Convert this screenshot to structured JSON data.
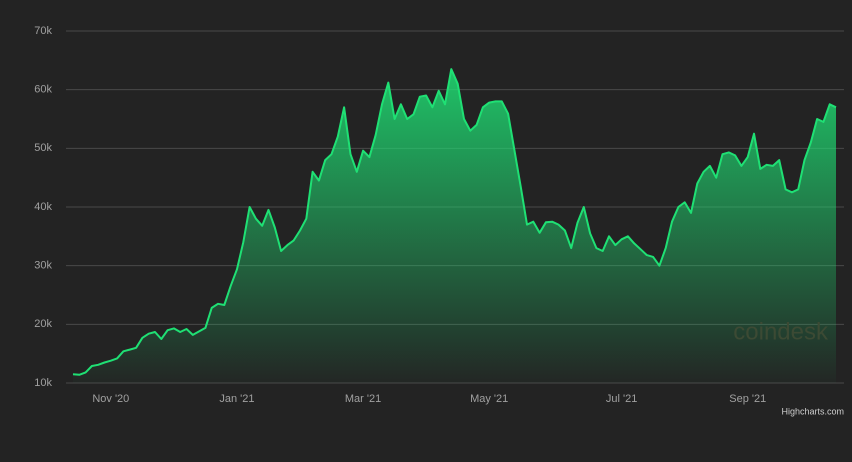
{
  "chart_data": {
    "type": "area",
    "categories": [
      null,
      null,
      null,
      null,
      null,
      null,
      "Nov '20",
      null,
      null,
      null,
      null,
      null,
      null,
      null,
      null,
      null,
      null,
      null,
      null,
      null,
      null,
      null,
      null,
      null,
      null,
      null,
      "Jan '21",
      null,
      null,
      null,
      null,
      null,
      null,
      null,
      null,
      null,
      null,
      null,
      null,
      null,
      null,
      null,
      null,
      null,
      null,
      null,
      "Mar '21",
      null,
      null,
      null,
      null,
      null,
      null,
      null,
      null,
      null,
      null,
      null,
      null,
      null,
      null,
      null,
      null,
      null,
      null,
      null,
      "May '21",
      null,
      null,
      null,
      null,
      null,
      null,
      null,
      null,
      null,
      null,
      null,
      null,
      null,
      null,
      null,
      null,
      null,
      null,
      null,
      null,
      "Jul '21",
      null,
      null,
      null,
      null,
      null,
      null,
      null,
      null,
      null,
      null,
      null,
      null,
      null,
      null,
      null,
      null,
      null,
      null,
      null,
      "Sep '21",
      null,
      null,
      null,
      null,
      null,
      null,
      null,
      null,
      null,
      null,
      null,
      null,
      null,
      null
    ],
    "series": [
      {
        "color": "#1fe074",
        "values": [
          11500,
          11400,
          11800,
          12900,
          13100,
          13500,
          13800,
          14200,
          15400,
          15700,
          16000,
          17700,
          18400,
          18700,
          17500,
          19000,
          19300,
          18700,
          19200,
          18200,
          18800,
          19400,
          22800,
          23500,
          23300,
          26500,
          29400,
          34000,
          40000,
          38000,
          36800,
          39500,
          36500,
          32500,
          33500,
          34300,
          36000,
          38000,
          46000,
          44500,
          48000,
          49000,
          52000,
          57000,
          49000,
          46000,
          49600,
          48500,
          52300,
          57500,
          61200,
          55000,
          57500,
          55000,
          55800,
          58800,
          59000,
          57000,
          59800,
          57500,
          63500,
          61000,
          55000,
          53000,
          54000,
          57000,
          57800,
          58000,
          58000,
          55900,
          49700,
          43500,
          37000,
          37500,
          35600,
          37400,
          37500,
          37000,
          36000,
          33000,
          37300,
          40000,
          35500,
          33000,
          32500,
          35000,
          33500,
          34500,
          35000,
          33800,
          32800,
          31800,
          31500,
          30000,
          33000,
          37500,
          40000,
          40800,
          39000,
          44000,
          46000,
          47000,
          45000,
          49000,
          49300,
          48800,
          47000,
          48500,
          52500,
          46500,
          47200,
          47000,
          48000,
          43000,
          42500,
          43000,
          48000,
          51000,
          55000,
          54500,
          57500,
          57000
        ]
      }
    ],
    "ylim": [
      10000,
      70000
    ],
    "yticks": [
      {
        "value": 10000,
        "label": "10k"
      },
      {
        "value": 20000,
        "label": "20k"
      },
      {
        "value": 30000,
        "label": "30k"
      },
      {
        "value": 40000,
        "label": "40k"
      },
      {
        "value": 50000,
        "label": "50k"
      },
      {
        "value": 60000,
        "label": "60k"
      },
      {
        "value": 70000,
        "label": "70k"
      }
    ],
    "grid": true,
    "watermark": "coindesk",
    "credits": "Highcharts.com"
  }
}
